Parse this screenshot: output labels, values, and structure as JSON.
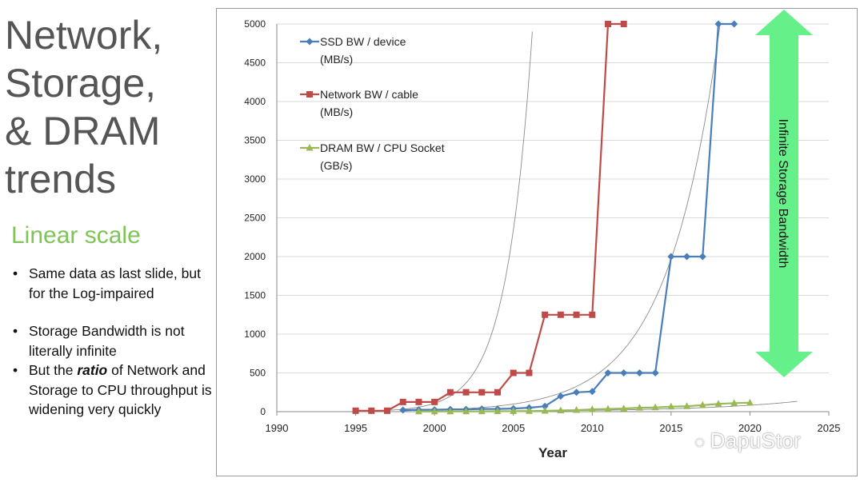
{
  "slide": {
    "title_lines": [
      "Network,",
      "Storage,",
      "& DRAM",
      "trends"
    ],
    "subtitle": "Linear scale",
    "bullet1": "Same data as last slide, but for the Log-impaired",
    "bullet2": "Storage Bandwidth is not literally infinite",
    "bullet3_pre": "But the ",
    "bullet3_em": "ratio",
    "bullet3_post": " of Network and Storage to CPU throughput is widening very quickly",
    "watermark": "DapuStor"
  },
  "colors": {
    "ssd": "#4a7ebb",
    "network": "#be4b48",
    "dram": "#98b954",
    "trend": "#8c8c8c",
    "arrow": "#66f08a",
    "grid": "#d9d9d9"
  },
  "chart_data": {
    "type": "line",
    "title": "",
    "xlabel": "Year",
    "ylabel": "",
    "xlim": [
      1990,
      2025
    ],
    "ylim": [
      0,
      5000
    ],
    "xticks": [
      1990,
      1995,
      2000,
      2005,
      2010,
      2015,
      2020,
      2025
    ],
    "yticks": [
      0,
      500,
      1000,
      1500,
      2000,
      2500,
      3000,
      3500,
      4000,
      4500,
      5000
    ],
    "series": [
      {
        "name_line1": "SSD BW / device",
        "name_line2": "(MB/s)",
        "marker": "diamond",
        "x": [
          1998,
          1999,
          2000,
          2001,
          2002,
          2003,
          2004,
          2005,
          2006,
          2007,
          2008,
          2009,
          2010,
          2011,
          2012,
          2013,
          2014,
          2015,
          2016,
          2017,
          2018,
          2019
        ],
        "y": [
          20,
          25,
          25,
          30,
          30,
          35,
          35,
          40,
          50,
          70,
          200,
          250,
          260,
          500,
          500,
          500,
          500,
          2000,
          2000,
          2000,
          5000,
          5000
        ]
      },
      {
        "name_line1": "Network BW / cable",
        "name_line2": "(MB/s)",
        "marker": "square",
        "x": [
          1995,
          1996,
          1997,
          1998,
          1999,
          2000,
          2001,
          2002,
          2003,
          2004,
          2005,
          2006,
          2007,
          2008,
          2009,
          2010,
          2011,
          2012
        ],
        "y": [
          12,
          12,
          12,
          125,
          125,
          125,
          250,
          250,
          250,
          250,
          500,
          500,
          1250,
          1250,
          1250,
          1250,
          5000,
          5000
        ]
      },
      {
        "name_line1": "DRAM BW / CPU Socket",
        "name_line2": "(GB/s)",
        "marker": "triangle",
        "x": [
          1999,
          2000,
          2001,
          2002,
          2003,
          2004,
          2005,
          2006,
          2007,
          2008,
          2009,
          2010,
          2011,
          2012,
          2013,
          2014,
          2015,
          2016,
          2017,
          2018,
          2019,
          2020
        ],
        "y": [
          2,
          2,
          3,
          3,
          4,
          5,
          6,
          8,
          10,
          15,
          20,
          30,
          35,
          40,
          50,
          55,
          65,
          70,
          85,
          100,
          110,
          115
        ]
      }
    ],
    "trendlines": [
      {
        "series": "network",
        "x0": 1995,
        "y0": 5,
        "rate": 0.615,
        "x_end": 2013
      },
      {
        "series": "ssd",
        "x0": 1998,
        "y0": 12,
        "rate": 0.3,
        "x_end": 2019
      },
      {
        "series": "dram",
        "x0": 1999,
        "y0": 3,
        "rate": 0.158,
        "x_end": 2023
      }
    ],
    "annotation": "Infinite Storage Bandwidth"
  }
}
